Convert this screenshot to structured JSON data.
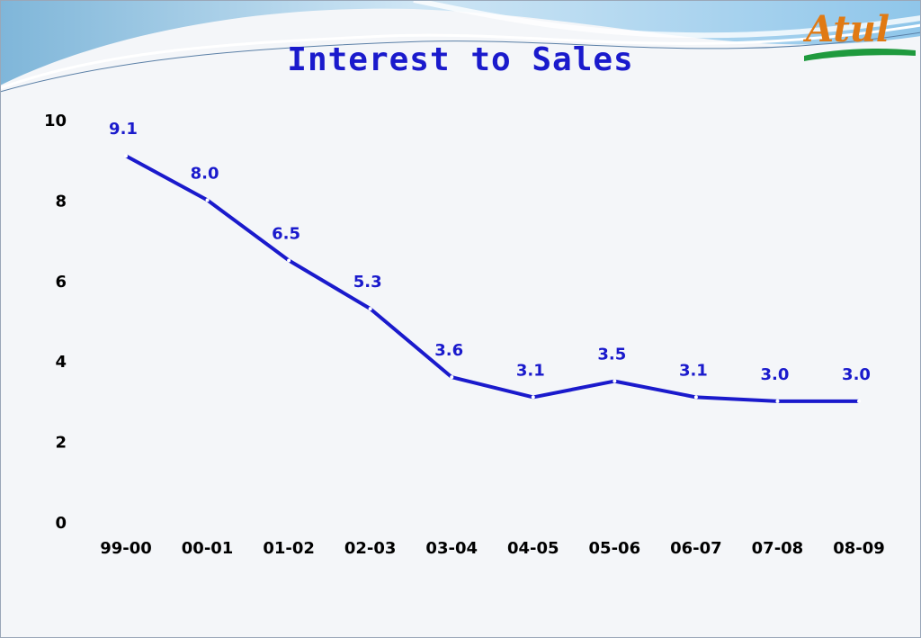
{
  "logo": {
    "text": "Atul",
    "icon": "atul-logo"
  },
  "chart_data": {
    "type": "line",
    "title": "Interest to Sales",
    "xlabel": "",
    "ylabel": "",
    "categories": [
      "99-00",
      "00-01",
      "01-02",
      "02-03",
      "03-04",
      "04-05",
      "05-06",
      "06-07",
      "07-08",
      "08-09"
    ],
    "series": [
      {
        "values": [
          9.1,
          8.0,
          6.5,
          5.3,
          3.6,
          3.1,
          3.5,
          3.1,
          3.0,
          3.0
        ],
        "labels": [
          "9.1",
          "8.0",
          "6.5",
          "5.3",
          "3.6",
          "3.1",
          "3.5",
          "3.1",
          "3.0",
          "3.0"
        ]
      }
    ],
    "ylim": [
      0,
      10
    ],
    "yticks": [
      "0",
      "2",
      "4",
      "6",
      "8",
      "10"
    ],
    "grid": false,
    "line_color": "#1a1acc"
  }
}
